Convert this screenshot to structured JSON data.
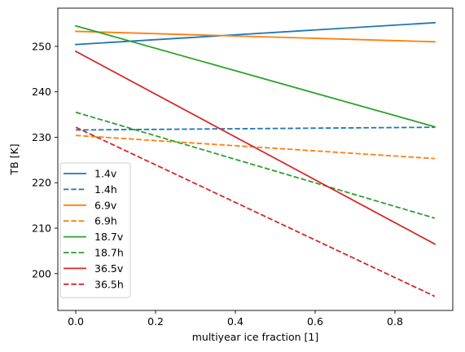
{
  "chart_data": {
    "type": "line",
    "xlabel": "multiyear ice fraction [1]",
    "ylabel": "TB [K]",
    "xlim": [
      -0.045,
      0.945
    ],
    "ylim": [
      191.9,
      258.4
    ],
    "xticks": [
      0.0,
      0.2,
      0.4,
      0.6,
      0.8
    ],
    "xtick_labels": [
      "0.0",
      "0.2",
      "0.4",
      "0.6",
      "0.8"
    ],
    "yticks": [
      200,
      210,
      220,
      230,
      240,
      250
    ],
    "ytick_labels": [
      "200",
      "210",
      "220",
      "230",
      "240",
      "250"
    ],
    "grid": false,
    "legend_position": "lower-left",
    "series": [
      {
        "name": "1.4v",
        "color": "#1f77b4",
        "style": "solid",
        "x": [
          0.0,
          0.9
        ],
        "y": [
          250.4,
          255.2
        ]
      },
      {
        "name": "1.4h",
        "color": "#1f77b4",
        "style": "dashed",
        "x": [
          0.0,
          0.9
        ],
        "y": [
          231.6,
          232.2
        ]
      },
      {
        "name": "6.9v",
        "color": "#ff7f0e",
        "style": "solid",
        "x": [
          0.0,
          0.9
        ],
        "y": [
          253.3,
          251.0
        ]
      },
      {
        "name": "6.9h",
        "color": "#ff7f0e",
        "style": "dashed",
        "x": [
          0.0,
          0.9
        ],
        "y": [
          230.4,
          225.3
        ]
      },
      {
        "name": "18.7v",
        "color": "#2ca02c",
        "style": "solid",
        "x": [
          0.0,
          0.9
        ],
        "y": [
          254.5,
          232.3
        ]
      },
      {
        "name": "18.7h",
        "color": "#2ca02c",
        "style": "dashed",
        "x": [
          0.0,
          0.9
        ],
        "y": [
          235.5,
          212.2
        ]
      },
      {
        "name": "36.5v",
        "color": "#d62728",
        "style": "solid",
        "x": [
          0.0,
          0.9
        ],
        "y": [
          248.9,
          206.5
        ]
      },
      {
        "name": "36.5h",
        "color": "#d62728",
        "style": "dashed",
        "x": [
          0.0,
          0.9
        ],
        "y": [
          232.2,
          195.0
        ]
      }
    ]
  }
}
